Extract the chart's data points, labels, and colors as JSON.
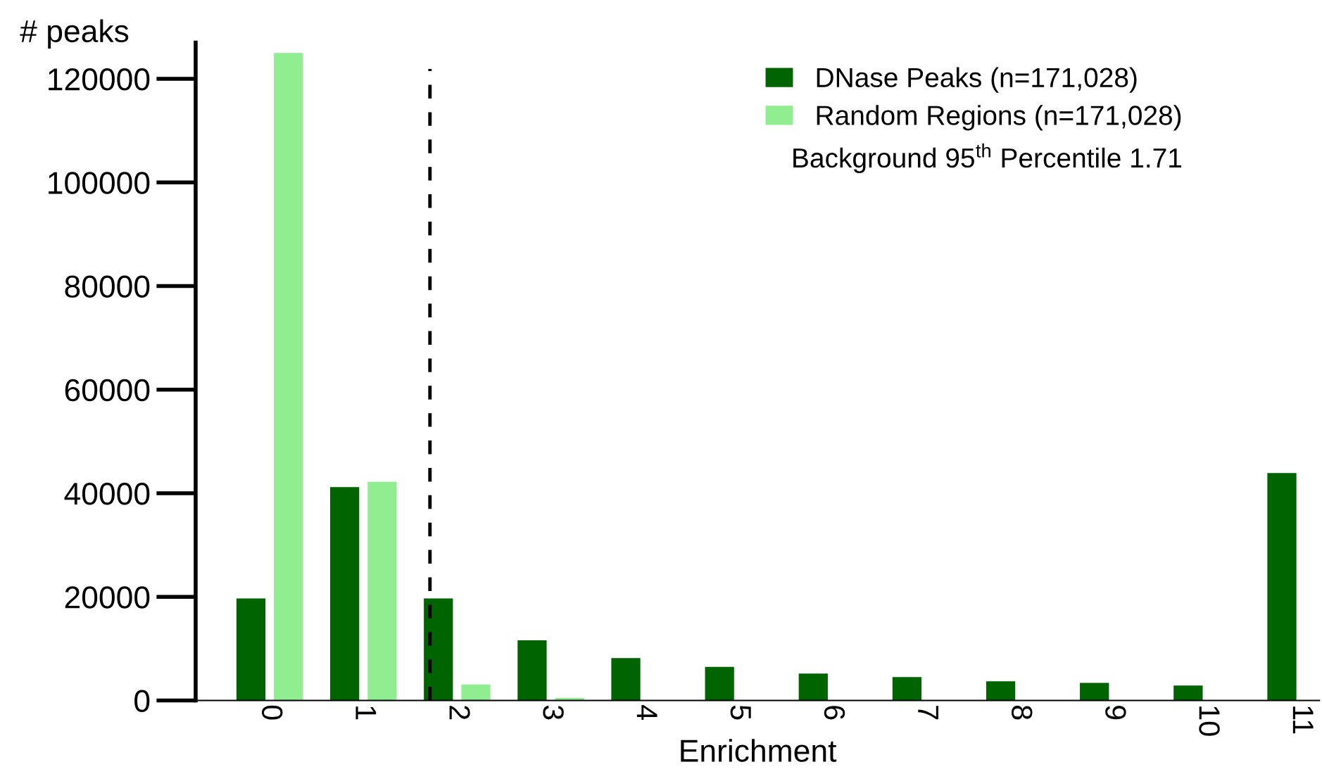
{
  "chart_data": {
    "type": "bar",
    "ylabel": "# peaks",
    "xlabel": "Enrichment",
    "x": [
      0,
      1,
      2,
      3,
      4,
      5,
      6,
      7,
      8,
      9,
      10,
      11
    ],
    "series": [
      {
        "name": "DNase Peaks (n=171,028)",
        "color": "#006400",
        "values": [
          19700,
          41200,
          19700,
          11600,
          8200,
          6500,
          5200,
          4500,
          3700,
          3400,
          2900,
          43900
        ]
      },
      {
        "name": "Random Regions (n=171,028)",
        "color": "#90ee90",
        "values": [
          125000,
          42200,
          3100,
          500,
          0,
          0,
          0,
          0,
          0,
          0,
          0,
          0
        ]
      }
    ],
    "xlim": [
      -0.79,
      11.2
    ],
    "xticks": [
      0,
      1,
      2,
      3,
      4,
      5,
      6,
      7,
      8,
      9,
      10,
      11
    ],
    "ylim": [
      0,
      127000
    ],
    "yticks": [
      0,
      20000,
      40000,
      60000,
      80000,
      100000,
      120000
    ],
    "ref_lines": [
      {
        "axis": "x",
        "value": 1.71,
        "color": "#000000",
        "line_style": "dashed"
      }
    ],
    "annotations": [
      "Background 95$^{th}$ Percentile 1.71"
    ],
    "legend": "top right",
    "grid": false
  }
}
